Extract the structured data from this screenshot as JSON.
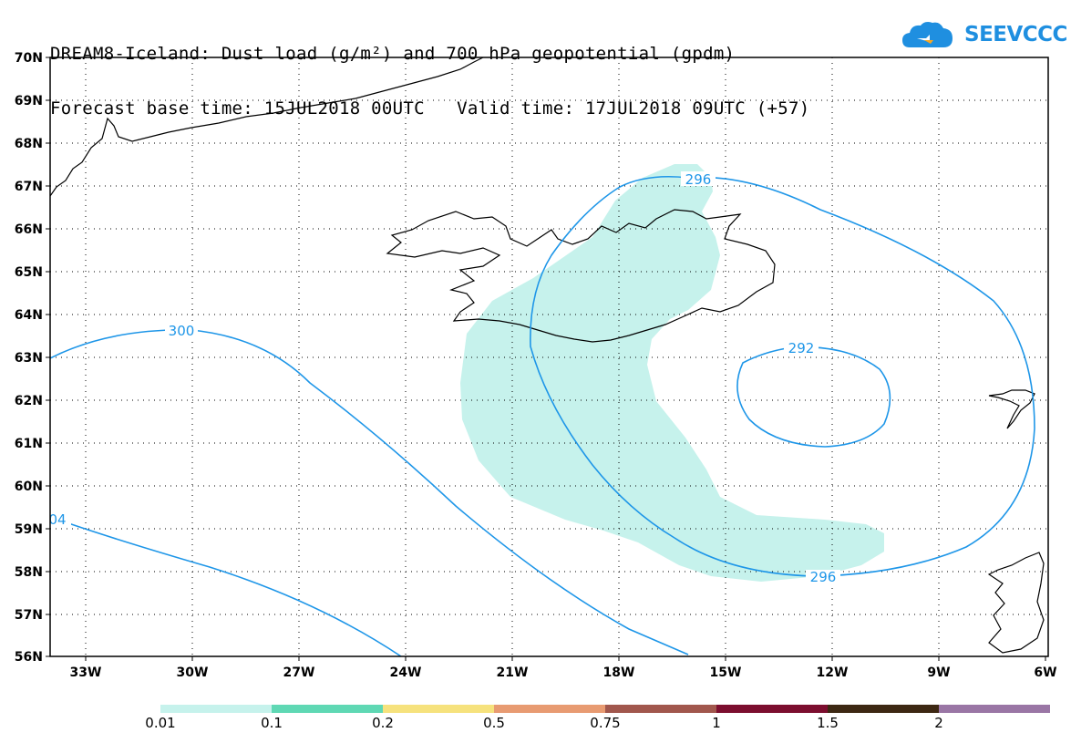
{
  "title": {
    "line1": "DREAM8-Iceland: Dust load (g/m²) and 700 hPa geopotential (gpdm)",
    "line2": "Forecast base time: 15JUL2018 00UTC   Valid time: 17JUL2018 09UTC (+57)"
  },
  "logo": {
    "text": "SEEVCCC",
    "icon": "cloud-logo-icon",
    "color": "#1f8fe0"
  },
  "axes": {
    "lat_labels": [
      "70N",
      "69N",
      "68N",
      "67N",
      "66N",
      "65N",
      "64N",
      "63N",
      "62N",
      "61N",
      "60N",
      "59N",
      "58N",
      "57N",
      "56N"
    ],
    "lon_labels": [
      "33W",
      "30W",
      "27W",
      "24W",
      "21W",
      "18W",
      "15W",
      "12W",
      "9W",
      "6W"
    ]
  },
  "contours": {
    "color": "#1e96e8",
    "labels": [
      "300",
      "04",
      "296",
      "292",
      "296"
    ]
  },
  "colorbar": {
    "colors": [
      "#c6f2ec",
      "#5fd8b4",
      "#f6e27d",
      "#e89b72",
      "#a1574d",
      "#7c0e2f",
      "#3d2813",
      "#9a76a5"
    ],
    "labels": [
      "0.01",
      "0.1",
      "0.2",
      "0.5",
      "0.75",
      "1",
      "1.5",
      "2"
    ]
  }
}
